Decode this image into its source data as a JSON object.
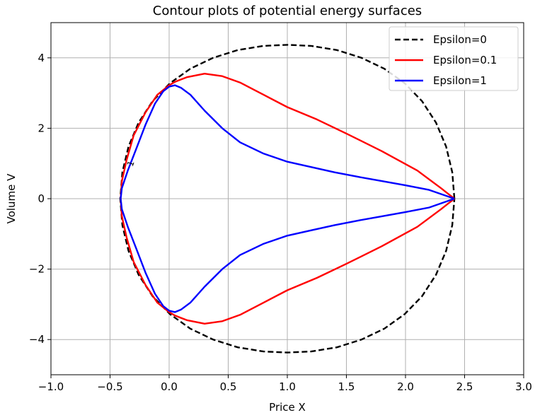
{
  "chart_data": {
    "type": "line",
    "title": "Contour plots of potential energy surfaces",
    "xlabel": "Price X",
    "ylabel": "Volume V",
    "xlim": [
      -1.0,
      3.0
    ],
    "ylim": [
      -5.0,
      5.0
    ],
    "xticks": [
      -1.0,
      -0.5,
      0.0,
      0.5,
      1.0,
      1.5,
      2.0,
      2.5,
      3.0
    ],
    "xtick_labels": [
      "−1.0",
      "−0.5",
      "0.0",
      "0.5",
      "1.0",
      "1.5",
      "2.0",
      "2.5",
      "3.0"
    ],
    "yticks": [
      -4,
      -2,
      0,
      2,
      4
    ],
    "ytick_labels": [
      "−4",
      "−2",
      "0",
      "2",
      "4"
    ],
    "grid": true,
    "legend_position": "top-right",
    "series": [
      {
        "name": "Epsilon=0",
        "color": "#000000",
        "dash": "dashed",
        "points": [
          [
            2.414,
            0.0
          ],
          [
            2.396,
            0.75
          ],
          [
            2.344,
            1.48
          ],
          [
            2.258,
            2.16
          ],
          [
            2.14,
            2.77
          ],
          [
            1.993,
            3.28
          ],
          [
            1.821,
            3.69
          ],
          [
            1.628,
            4.0
          ],
          [
            1.42,
            4.22
          ],
          [
            1.202,
            4.34
          ],
          [
            1.0,
            4.37
          ],
          [
            0.798,
            4.34
          ],
          [
            0.58,
            4.22
          ],
          [
            0.372,
            4.0
          ],
          [
            0.179,
            3.69
          ],
          [
            0.007,
            3.28
          ],
          [
            -0.14,
            2.77
          ],
          [
            -0.258,
            2.16
          ],
          [
            -0.344,
            1.48
          ],
          [
            -0.396,
            0.75
          ],
          [
            -0.414,
            0.0
          ],
          [
            -0.396,
            -0.75
          ],
          [
            -0.344,
            -1.48
          ],
          [
            -0.258,
            -2.16
          ],
          [
            -0.14,
            -2.77
          ],
          [
            0.007,
            -3.28
          ],
          [
            0.179,
            -3.69
          ],
          [
            0.372,
            -4.0
          ],
          [
            0.58,
            -4.22
          ],
          [
            0.798,
            -4.34
          ],
          [
            1.0,
            -4.37
          ],
          [
            1.202,
            -4.34
          ],
          [
            1.42,
            -4.22
          ],
          [
            1.628,
            -4.0
          ],
          [
            1.821,
            -3.69
          ],
          [
            1.993,
            -3.28
          ],
          [
            2.14,
            -2.77
          ],
          [
            2.258,
            -2.16
          ],
          [
            2.344,
            -1.48
          ],
          [
            2.396,
            -0.75
          ],
          [
            2.414,
            0.0
          ]
        ]
      },
      {
        "name": "Epsilon=0.1",
        "color": "#ff0000",
        "dash": "solid",
        "points": [
          [
            2.414,
            0.0
          ],
          [
            2.3,
            0.3
          ],
          [
            2.1,
            0.8
          ],
          [
            1.8,
            1.35
          ],
          [
            1.5,
            1.85
          ],
          [
            1.25,
            2.25
          ],
          [
            1.0,
            2.6
          ],
          [
            0.8,
            2.95
          ],
          [
            0.6,
            3.3
          ],
          [
            0.45,
            3.48
          ],
          [
            0.3,
            3.55
          ],
          [
            0.15,
            3.45
          ],
          [
            0.05,
            3.32
          ],
          [
            0.0,
            3.22
          ],
          [
            -0.1,
            2.95
          ],
          [
            -0.2,
            2.45
          ],
          [
            -0.3,
            1.8
          ],
          [
            -0.36,
            1.1
          ],
          [
            -0.4,
            0.5
          ],
          [
            -0.41,
            0.0
          ],
          [
            -0.4,
            -0.5
          ],
          [
            -0.36,
            -1.1
          ],
          [
            -0.3,
            -1.8
          ],
          [
            -0.2,
            -2.45
          ],
          [
            -0.1,
            -2.95
          ],
          [
            0.0,
            -3.22
          ],
          [
            0.05,
            -3.32
          ],
          [
            0.15,
            -3.45
          ],
          [
            0.3,
            -3.55
          ],
          [
            0.45,
            -3.48
          ],
          [
            0.6,
            -3.3
          ],
          [
            0.8,
            -2.95
          ],
          [
            1.0,
            -2.6
          ],
          [
            1.25,
            -2.25
          ],
          [
            1.5,
            -1.85
          ],
          [
            1.8,
            -1.35
          ],
          [
            2.1,
            -0.8
          ],
          [
            2.3,
            -0.3
          ],
          [
            2.414,
            0.0
          ]
        ]
      },
      {
        "name": "Epsilon=1",
        "color": "#0000ff",
        "dash": "solid",
        "points": [
          [
            2.414,
            0.0
          ],
          [
            2.2,
            0.25
          ],
          [
            2.0,
            0.38
          ],
          [
            1.8,
            0.5
          ],
          [
            1.6,
            0.62
          ],
          [
            1.4,
            0.75
          ],
          [
            1.2,
            0.9
          ],
          [
            1.0,
            1.05
          ],
          [
            0.8,
            1.28
          ],
          [
            0.6,
            1.6
          ],
          [
            0.45,
            2.0
          ],
          [
            0.3,
            2.5
          ],
          [
            0.18,
            2.95
          ],
          [
            0.1,
            3.15
          ],
          [
            0.05,
            3.22
          ],
          [
            0.0,
            3.18
          ],
          [
            -0.05,
            3.05
          ],
          [
            -0.12,
            2.7
          ],
          [
            -0.2,
            2.1
          ],
          [
            -0.28,
            1.4
          ],
          [
            -0.35,
            0.8
          ],
          [
            -0.4,
            0.3
          ],
          [
            -0.41,
            0.0
          ],
          [
            -0.4,
            -0.3
          ],
          [
            -0.35,
            -0.8
          ],
          [
            -0.28,
            -1.4
          ],
          [
            -0.2,
            -2.1
          ],
          [
            -0.12,
            -2.7
          ],
          [
            -0.05,
            -3.05
          ],
          [
            0.0,
            -3.18
          ],
          [
            0.05,
            -3.22
          ],
          [
            0.1,
            -3.15
          ],
          [
            0.18,
            -2.95
          ],
          [
            0.3,
            -2.5
          ],
          [
            0.45,
            -2.0
          ],
          [
            0.6,
            -1.6
          ],
          [
            0.8,
            -1.28
          ],
          [
            1.0,
            -1.05
          ],
          [
            1.2,
            -0.9
          ],
          [
            1.4,
            -0.75
          ],
          [
            1.6,
            -0.62
          ],
          [
            1.8,
            -0.5
          ],
          [
            2.0,
            -0.38
          ],
          [
            2.2,
            -0.25
          ],
          [
            2.414,
            0.0
          ]
        ]
      }
    ],
    "annotations": [
      {
        "text": "1",
        "x": -0.31,
        "y": 0.9,
        "color": "#0000ff"
      }
    ]
  }
}
